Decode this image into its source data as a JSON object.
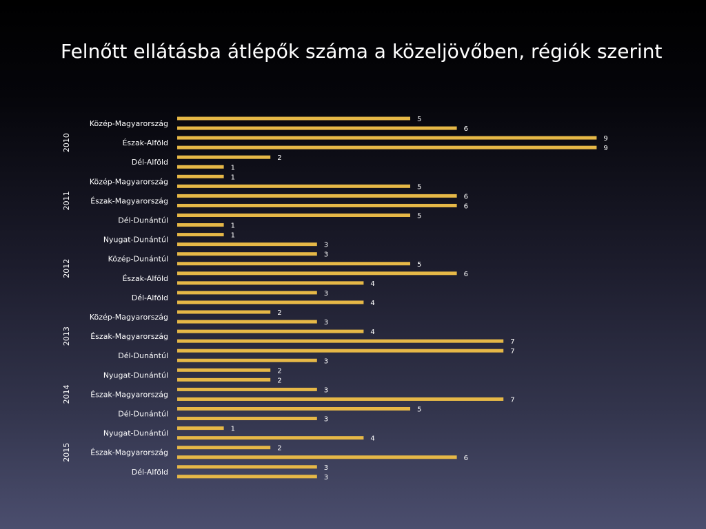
{
  "slide": {
    "title": "Felnőtt ellátásba átlépők száma a közeljövőben, régiók szerint"
  },
  "colors": {
    "bar": "#e6b847",
    "text": "#ffffff"
  },
  "chart_data": {
    "type": "bar",
    "orientation": "horizontal",
    "title": "",
    "xlabel": "",
    "ylabel": "",
    "xlim": [
      0,
      9
    ],
    "grid": false,
    "legend": "none",
    "groups": [
      {
        "year": "2010",
        "categories": [
          {
            "name": "Közép-Magyarország",
            "values": [
              5,
              6
            ]
          },
          {
            "name": "Észak-Alföld",
            "values": [
              9,
              9
            ]
          },
          {
            "name": "Dél-Alföld",
            "values": [
              2,
              1
            ]
          }
        ]
      },
      {
        "year": "2011",
        "categories": [
          {
            "name": "Közép-Magyarország",
            "values": [
              1,
              5
            ]
          },
          {
            "name": "Észak-Magyarország",
            "values": [
              6,
              6
            ]
          },
          {
            "name": "Dél-Dunántúl",
            "values": [
              5,
              1
            ]
          }
        ]
      },
      {
        "year": "2012",
        "categories": [
          {
            "name": "Nyugat-Dunántúl",
            "values": [
              1,
              3
            ]
          },
          {
            "name": "Közép-Dunántúl",
            "values": [
              3,
              5
            ]
          },
          {
            "name": "Észak-Alföld",
            "values": [
              6,
              4
            ]
          },
          {
            "name": "Dél-Alföld",
            "values": [
              3,
              4
            ]
          }
        ]
      },
      {
        "year": "2013",
        "categories": [
          {
            "name": "Közép-Magyarország",
            "values": [
              2,
              3
            ]
          },
          {
            "name": "Észak-Magyarország",
            "values": [
              4,
              7
            ]
          },
          {
            "name": "Dél-Dunántúl",
            "values": [
              7,
              3
            ]
          }
        ]
      },
      {
        "year": "2014",
        "categories": [
          {
            "name": "Nyugat-Dunántúl",
            "values": [
              2,
              2
            ]
          },
          {
            "name": "Észak-Magyarország",
            "values": [
              3,
              7
            ]
          },
          {
            "name": "Dél-Dunántúl",
            "values": [
              5,
              3
            ]
          }
        ]
      },
      {
        "year": "2015",
        "categories": [
          {
            "name": "Nyugat-Dunántúl",
            "values": [
              1,
              4
            ]
          },
          {
            "name": "Észak-Magyarország",
            "values": [
              2,
              6
            ]
          },
          {
            "name": "Dél-Alföld",
            "values": [
              3,
              3
            ]
          }
        ]
      }
    ]
  }
}
